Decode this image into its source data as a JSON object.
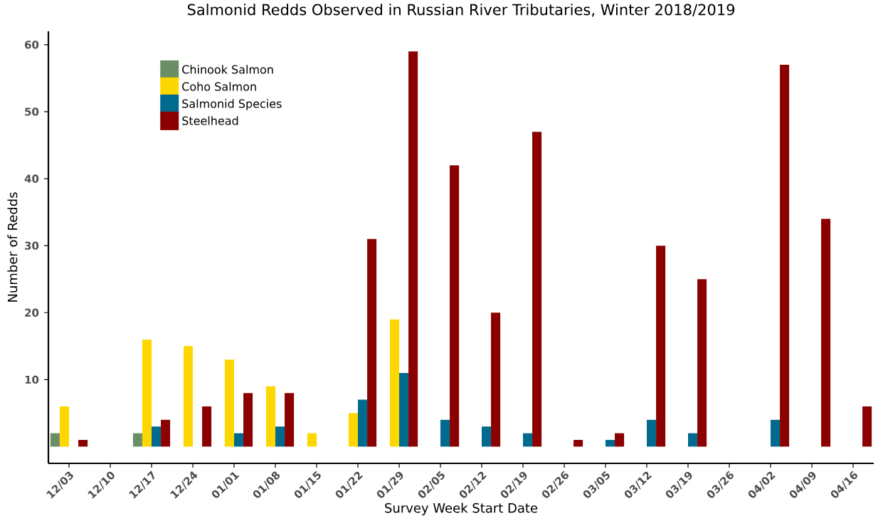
{
  "chart_data": {
    "type": "bar",
    "title": "Salmonid Redds Observed in Russian River Tributaries, Winter 2018/2019",
    "xlabel": "Survey Week Start Date",
    "ylabel": "Number of Redds",
    "categories": [
      "12/03",
      "12/10",
      "12/17",
      "12/24",
      "01/01",
      "01/08",
      "01/15",
      "01/22",
      "01/29",
      "02/05",
      "02/12",
      "02/19",
      "02/26",
      "03/05",
      "03/12",
      "03/19",
      "03/26",
      "04/02",
      "04/09",
      "04/16"
    ],
    "series": [
      {
        "name": "Chinook Salmon",
        "color": "#6b8e67",
        "values": [
          2,
          null,
          2,
          null,
          null,
          null,
          null,
          null,
          null,
          null,
          null,
          null,
          null,
          null,
          null,
          null,
          null,
          null,
          null,
          null
        ]
      },
      {
        "name": "Coho Salmon",
        "color": "#ffd700",
        "values": [
          6,
          null,
          16,
          15,
          13,
          9,
          2,
          5,
          19,
          null,
          null,
          null,
          null,
          null,
          null,
          null,
          null,
          null,
          null,
          null
        ]
      },
      {
        "name": "Salmonid Species",
        "color": "#006b8f",
        "values": [
          null,
          null,
          3,
          null,
          2,
          3,
          null,
          7,
          11,
          4,
          3,
          2,
          null,
          1,
          4,
          2,
          null,
          4,
          null,
          null
        ]
      },
      {
        "name": "Steelhead",
        "color": "#8b0000",
        "values": [
          1,
          null,
          4,
          6,
          8,
          8,
          null,
          31,
          59,
          42,
          20,
          47,
          1,
          2,
          30,
          25,
          null,
          57,
          34,
          6
        ]
      }
    ],
    "ylim": [
      -2.5,
      62
    ],
    "yticks": [
      10,
      20,
      30,
      40,
      50,
      60
    ],
    "grid": false,
    "legend": "top left"
  }
}
